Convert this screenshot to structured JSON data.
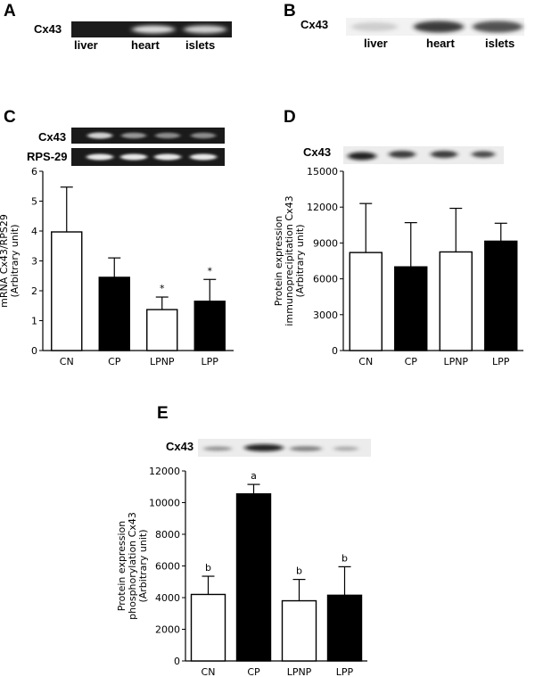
{
  "panels": {
    "A": {
      "letter": "A",
      "protein": "Cx43",
      "lanes": [
        "liver",
        "heart",
        "islets"
      ]
    },
    "B": {
      "letter": "B",
      "protein": "Cx43",
      "lanes": [
        "liver",
        "heart",
        "islets"
      ]
    },
    "C": {
      "letter": "C",
      "blots": [
        "Cx43",
        "RPS-29"
      ]
    },
    "D": {
      "letter": "D",
      "blots": [
        "Cx43"
      ]
    },
    "E": {
      "letter": "E",
      "blots": [
        "Cx43"
      ]
    }
  },
  "colors": {
    "open_bar": "#ffffff",
    "filled_bar": "#000000",
    "gel_dark": "#1a1a1a",
    "blot_light": "#d8d8d8"
  },
  "chart_data": [
    {
      "panel": "C",
      "type": "bar",
      "categories": [
        "CN",
        "CP",
        "LPNP",
        "LPP"
      ],
      "values": [
        3.97,
        2.45,
        1.37,
        1.65
      ],
      "errors": [
        1.5,
        0.65,
        0.42,
        0.73
      ],
      "fills": [
        "open",
        "filled",
        "open",
        "filled"
      ],
      "significance": [
        "",
        "",
        "*",
        "*"
      ],
      "ylabel": [
        "mRNA Cx43/RPS29",
        "(Arbitrary unit)"
      ],
      "ylim": [
        0,
        6
      ],
      "yticks": [
        0,
        1,
        2,
        3,
        4,
        5,
        6
      ],
      "ytick_labels": [
        "0",
        "1",
        "2",
        "3",
        "4",
        "5",
        "6"
      ]
    },
    {
      "panel": "D",
      "type": "bar",
      "categories": [
        "CN",
        "CP",
        "LPNP",
        "LPP"
      ],
      "values": [
        8200,
        7000,
        8250,
        9150
      ],
      "errors": [
        4100,
        3700,
        3650,
        1500
      ],
      "fills": [
        "open",
        "filled",
        "open",
        "filled"
      ],
      "significance": [
        "",
        "",
        "",
        ""
      ],
      "ylabel": [
        "Protein expression",
        "immunoprecipitation Cx43",
        "(Arbitrary unit)"
      ],
      "ylim": [
        0,
        15000
      ],
      "yticks": [
        0,
        3000,
        6000,
        9000,
        12000,
        15000
      ],
      "ytick_labels": [
        "0",
        "3000",
        "6000",
        "9000",
        "12000",
        "15000"
      ]
    },
    {
      "panel": "E",
      "type": "bar",
      "categories": [
        "CN",
        "CP",
        "LPNP",
        "LPP"
      ],
      "values": [
        4200,
        10550,
        3800,
        4150
      ],
      "errors": [
        1150,
        600,
        1350,
        1800
      ],
      "fills": [
        "open",
        "filled",
        "open",
        "filled"
      ],
      "significance": [
        "b",
        "a",
        "b",
        "b"
      ],
      "ylabel": [
        "Protein expression",
        "phosphorylation Cx43",
        "(Arbitrary unit)"
      ],
      "ylim": [
        0,
        12000
      ],
      "yticks": [
        0,
        2000,
        4000,
        6000,
        8000,
        10000,
        12000
      ],
      "ytick_labels": [
        "0",
        "2000",
        "4000",
        "6000",
        "8000",
        "10000",
        "12000"
      ]
    }
  ]
}
